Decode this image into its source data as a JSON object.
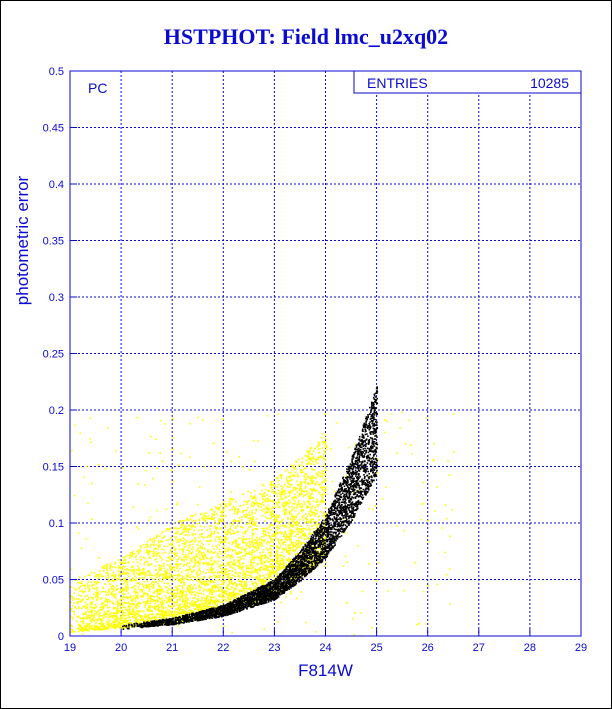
{
  "chart_data": {
    "type": "scatter",
    "title": "HSTPHOT: Field lmc_u2xq02",
    "xlabel": "F814W",
    "ylabel": "photometric error",
    "xlim": [
      19,
      29
    ],
    "ylim": [
      0,
      0.5
    ],
    "x_ticks": [
      "19",
      "20",
      "21",
      "22",
      "23",
      "24",
      "25",
      "26",
      "27",
      "28",
      "29"
    ],
    "y_ticks": [
      "0",
      "0.05",
      "0.1",
      "0.15",
      "0.2",
      "0.25",
      "0.3",
      "0.35",
      "0.4",
      "0.45",
      "0.5"
    ],
    "grid": true,
    "panel_label": "PC",
    "stats_box": {
      "label": "ENTRIES",
      "value": "10285"
    },
    "series": [
      {
        "color": "#ffff00",
        "trend": [
          {
            "x": 19.0,
            "y_low": 0.004,
            "y_high": 0.05
          },
          {
            "x": 20.0,
            "y_low": 0.008,
            "y_high": 0.07
          },
          {
            "x": 21.0,
            "y_low": 0.012,
            "y_high": 0.1
          },
          {
            "x": 22.0,
            "y_low": 0.02,
            "y_high": 0.12
          },
          {
            "x": 23.0,
            "y_low": 0.035,
            "y_high": 0.14
          },
          {
            "x": 24.0,
            "y_low": 0.07,
            "y_high": 0.18
          }
        ]
      },
      {
        "color": "#000000",
        "trend": [
          {
            "x": 20.0,
            "y": 0.008
          },
          {
            "x": 21.0,
            "y": 0.013
          },
          {
            "x": 22.0,
            "y": 0.022
          },
          {
            "x": 23.0,
            "y": 0.04
          },
          {
            "x": 23.5,
            "y": 0.06
          },
          {
            "x": 24.0,
            "y": 0.085
          },
          {
            "x": 24.5,
            "y": 0.125
          },
          {
            "x": 25.0,
            "y": 0.175
          }
        ]
      }
    ],
    "colors": {
      "frame": "#0a0ad2",
      "grid": "#0a0ad2",
      "title": "#0a0ad2"
    }
  }
}
